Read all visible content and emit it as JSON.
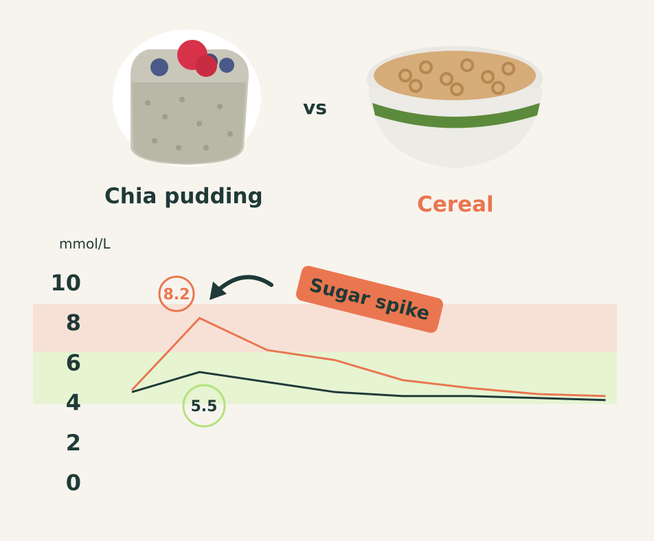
{
  "header": {
    "left_food": "Chia pudding",
    "vs": "vs",
    "right_food": "Cereal"
  },
  "annotation": {
    "label": "Sugar spike"
  },
  "colors": {
    "chia": "#1f3a37",
    "cereal": "#ea7650",
    "high_band": "#f7e1d6",
    "normal_band": "#e6f4d2",
    "chia_badge": "#b4e27a",
    "background": "#f7f4ee"
  },
  "chart_data": {
    "type": "line",
    "title": "",
    "ylabel": "mmol/L",
    "xlabel": "",
    "ylim": [
      0,
      10
    ],
    "yticks": [
      "0",
      "2",
      "4",
      "6",
      "8",
      "10"
    ],
    "x": [
      0,
      1,
      2,
      3,
      4,
      5,
      6,
      7
    ],
    "bands": [
      {
        "name": "normal",
        "from": 3.9,
        "to": 6.5
      },
      {
        "name": "high",
        "from": 6.5,
        "to": 8.9
      }
    ],
    "series": [
      {
        "name": "Cereal",
        "values": [
          4.6,
          8.2,
          6.6,
          6.1,
          5.1,
          4.7,
          4.4,
          4.3
        ]
      },
      {
        "name": "Chia pudding",
        "values": [
          4.5,
          5.5,
          5.0,
          4.5,
          4.3,
          4.3,
          4.2,
          4.1
        ]
      }
    ],
    "peak_labels": [
      {
        "series": "Cereal",
        "value": "8.2",
        "index": 1
      },
      {
        "series": "Chia pudding",
        "value": "5.5",
        "index": 1
      }
    ]
  }
}
